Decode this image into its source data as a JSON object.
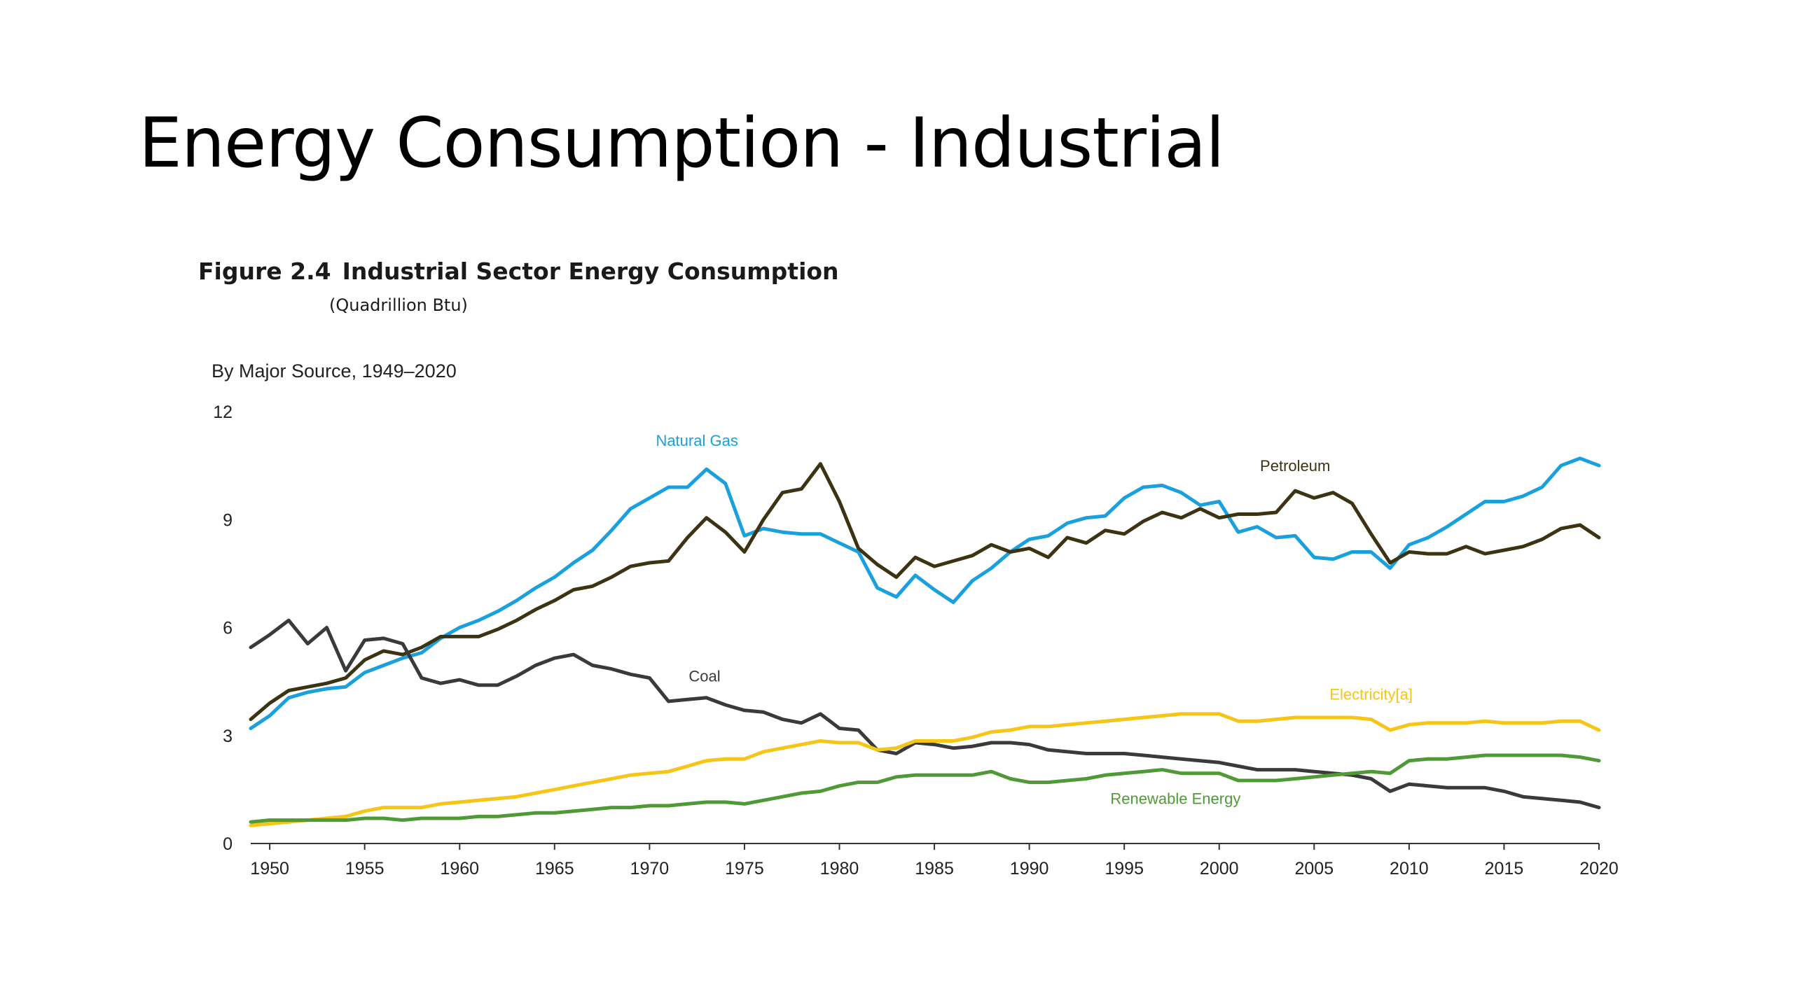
{
  "slide": {
    "title": "Energy Consumption - Industrial"
  },
  "figure": {
    "number": "Figure 2.4",
    "title": "Industrial Sector Energy Consumption",
    "units": "(Quadrillion Btu)",
    "subtitle": "By Major Source, 1949–2020"
  },
  "chart_data": {
    "type": "line",
    "title": "Industrial Sector Energy Consumption",
    "xlabel": "",
    "ylabel": "",
    "xlim": [
      1949,
      2020
    ],
    "ylim": [
      0,
      12
    ],
    "grid": false,
    "legend": "inline labels",
    "y_ticks": [
      0,
      3,
      6,
      9,
      12
    ],
    "x_ticks": [
      1950,
      1955,
      1960,
      1965,
      1970,
      1975,
      1980,
      1985,
      1990,
      1995,
      2000,
      2005,
      2010,
      2015,
      2020
    ],
    "x": [
      1949,
      1950,
      1951,
      1952,
      1953,
      1954,
      1955,
      1956,
      1957,
      1958,
      1959,
      1960,
      1961,
      1962,
      1963,
      1964,
      1965,
      1966,
      1967,
      1968,
      1969,
      1970,
      1971,
      1972,
      1973,
      1974,
      1975,
      1976,
      1977,
      1978,
      1979,
      1980,
      1981,
      1982,
      1983,
      1984,
      1985,
      1986,
      1987,
      1988,
      1989,
      1990,
      1991,
      1992,
      1993,
      1994,
      1995,
      1996,
      1997,
      1998,
      1999,
      2000,
      2001,
      2002,
      2003,
      2004,
      2005,
      2006,
      2007,
      2008,
      2009,
      2010,
      2011,
      2012,
      2013,
      2014,
      2015,
      2016,
      2017,
      2018,
      2019,
      2020
    ],
    "series": [
      {
        "name": "Natural Gas",
        "color": "#1aa0dc",
        "values": [
          3.2,
          3.55,
          4.05,
          4.2,
          4.3,
          4.35,
          4.75,
          4.95,
          5.15,
          5.3,
          5.7,
          6.0,
          6.2,
          6.45,
          6.75,
          7.1,
          7.4,
          7.8,
          8.15,
          8.7,
          9.3,
          9.6,
          9.9,
          9.9,
          10.4,
          10.0,
          8.55,
          8.75,
          8.65,
          8.6,
          8.6,
          8.35,
          8.1,
          7.1,
          6.85,
          7.45,
          7.05,
          6.7,
          7.3,
          7.65,
          8.1,
          8.45,
          8.55,
          8.9,
          9.05,
          9.1,
          9.6,
          9.9,
          9.95,
          9.75,
          9.4,
          9.5,
          8.65,
          8.8,
          8.5,
          8.55,
          7.95,
          7.9,
          8.1,
          8.1,
          7.65,
          8.3,
          8.5,
          8.8,
          9.15,
          9.5,
          9.5,
          9.65,
          9.9,
          10.5,
          10.7,
          10.5
        ]
      },
      {
        "name": "Petroleum",
        "color": "#3b3312",
        "values": [
          3.45,
          3.9,
          4.25,
          4.35,
          4.45,
          4.6,
          5.1,
          5.35,
          5.25,
          5.45,
          5.75,
          5.75,
          5.75,
          5.95,
          6.2,
          6.5,
          6.75,
          7.05,
          7.15,
          7.4,
          7.7,
          7.8,
          7.85,
          8.5,
          9.05,
          8.65,
          8.1,
          9.0,
          9.75,
          9.85,
          10.55,
          9.5,
          8.2,
          7.75,
          7.4,
          7.95,
          7.7,
          7.85,
          8.0,
          8.3,
          8.1,
          8.2,
          7.95,
          8.5,
          8.35,
          8.7,
          8.6,
          8.95,
          9.2,
          9.05,
          9.3,
          9.05,
          9.15,
          9.15,
          9.2,
          9.8,
          9.6,
          9.75,
          9.45,
          8.6,
          7.8,
          8.1,
          8.05,
          8.05,
          8.25,
          8.05,
          8.15,
          8.25,
          8.45,
          8.75,
          8.85,
          8.5
        ]
      },
      {
        "name": "Coal",
        "color": "#3a3a3a",
        "values": [
          5.45,
          5.8,
          6.2,
          5.55,
          6.0,
          4.8,
          5.65,
          5.7,
          5.55,
          4.6,
          4.45,
          4.55,
          4.4,
          4.4,
          4.65,
          4.95,
          5.15,
          5.25,
          4.95,
          4.85,
          4.7,
          4.6,
          3.95,
          4.0,
          4.05,
          3.85,
          3.7,
          3.65,
          3.45,
          3.35,
          3.6,
          3.2,
          3.15,
          2.6,
          2.5,
          2.8,
          2.75,
          2.65,
          2.7,
          2.8,
          2.8,
          2.75,
          2.6,
          2.55,
          2.5,
          2.5,
          2.5,
          2.45,
          2.4,
          2.35,
          2.3,
          2.25,
          2.15,
          2.05,
          2.05,
          2.05,
          2.0,
          1.95,
          1.9,
          1.8,
          1.45,
          1.65,
          1.6,
          1.55,
          1.55,
          1.55,
          1.45,
          1.3,
          1.25,
          1.2,
          1.15,
          1.0
        ]
      },
      {
        "name": "Electricity[a]",
        "color": "#f5c518",
        "values": [
          0.5,
          0.55,
          0.6,
          0.65,
          0.7,
          0.75,
          0.9,
          1.0,
          1.0,
          1.0,
          1.1,
          1.15,
          1.2,
          1.25,
          1.3,
          1.4,
          1.5,
          1.6,
          1.7,
          1.8,
          1.9,
          1.95,
          2.0,
          2.15,
          2.3,
          2.35,
          2.35,
          2.55,
          2.65,
          2.75,
          2.85,
          2.8,
          2.8,
          2.6,
          2.65,
          2.85,
          2.85,
          2.85,
          2.95,
          3.1,
          3.15,
          3.25,
          3.25,
          3.3,
          3.35,
          3.4,
          3.45,
          3.5,
          3.55,
          3.6,
          3.6,
          3.6,
          3.4,
          3.4,
          3.45,
          3.5,
          3.5,
          3.5,
          3.5,
          3.45,
          3.15,
          3.3,
          3.35,
          3.35,
          3.35,
          3.4,
          3.35,
          3.35,
          3.35,
          3.4,
          3.4,
          3.15
        ]
      },
      {
        "name": "Renewable Energy",
        "color": "#4f9a36",
        "values": [
          0.6,
          0.65,
          0.65,
          0.65,
          0.65,
          0.65,
          0.7,
          0.7,
          0.65,
          0.7,
          0.7,
          0.7,
          0.75,
          0.75,
          0.8,
          0.85,
          0.85,
          0.9,
          0.95,
          1.0,
          1.0,
          1.05,
          1.05,
          1.1,
          1.15,
          1.15,
          1.1,
          1.2,
          1.3,
          1.4,
          1.45,
          1.6,
          1.7,
          1.7,
          1.85,
          1.9,
          1.9,
          1.9,
          1.9,
          2.0,
          1.8,
          1.7,
          1.7,
          1.75,
          1.8,
          1.9,
          1.95,
          2.0,
          2.05,
          1.95,
          1.95,
          1.95,
          1.75,
          1.75,
          1.75,
          1.8,
          1.85,
          1.9,
          1.95,
          2.0,
          1.95,
          2.3,
          2.35,
          2.35,
          2.4,
          2.45,
          2.45,
          2.45,
          2.45,
          2.45,
          2.4,
          2.3
        ]
      }
    ]
  }
}
